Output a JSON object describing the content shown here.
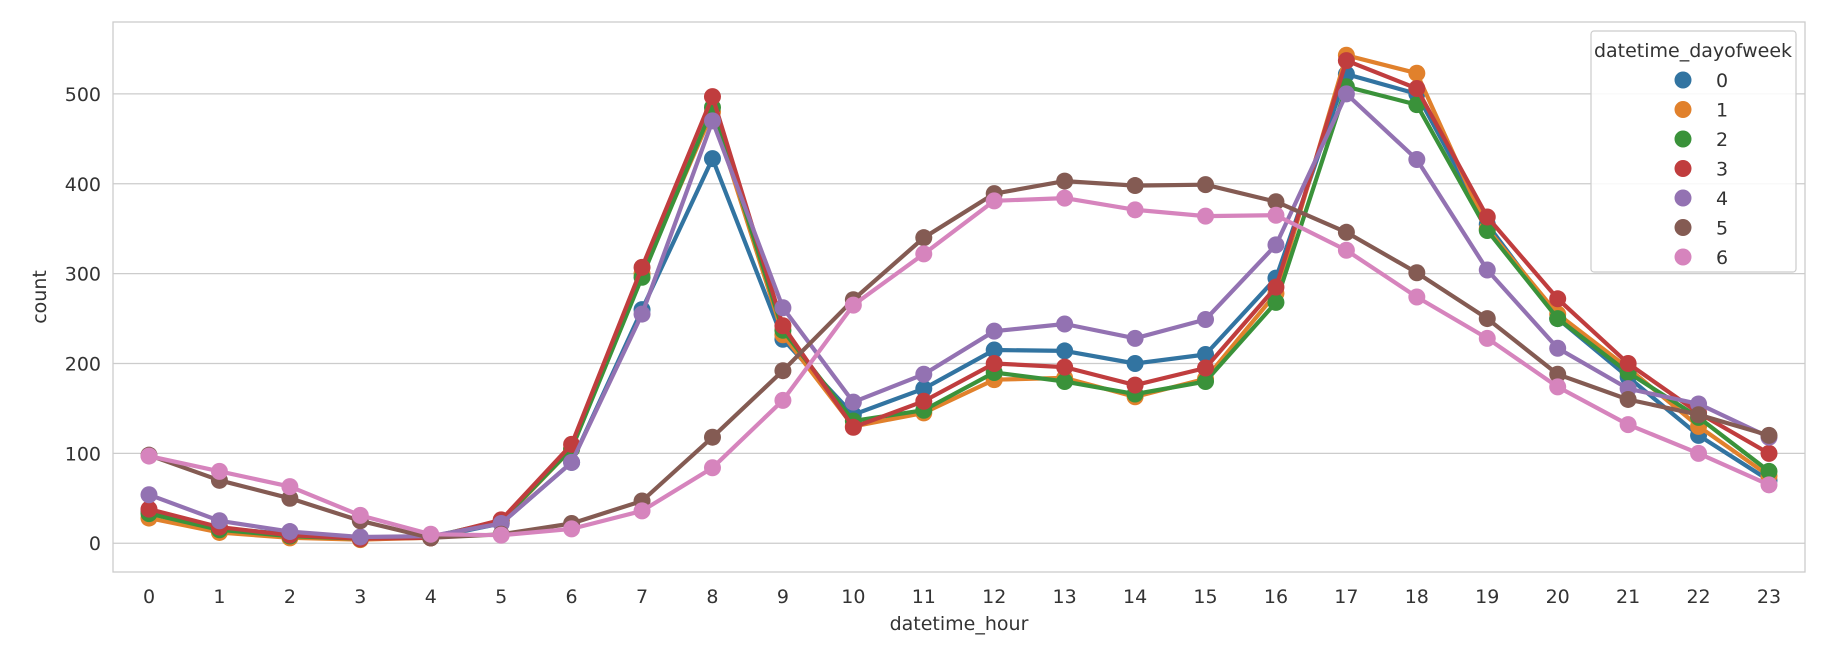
{
  "chart_data": {
    "type": "line",
    "xlabel": "datetime_hour",
    "ylabel": "count",
    "x": [
      0,
      1,
      2,
      3,
      4,
      5,
      6,
      7,
      8,
      9,
      10,
      11,
      12,
      13,
      14,
      15,
      16,
      17,
      18,
      19,
      20,
      21,
      22,
      23
    ],
    "ylim": [
      -32,
      580
    ],
    "yticks": [
      0,
      100,
      200,
      300,
      400,
      500
    ],
    "grid": true,
    "legend": {
      "title": "datetime_dayofweek",
      "placement": "top-right"
    },
    "series": [
      {
        "name": "0",
        "color": "#3274a1",
        "values": [
          35,
          17,
          10,
          5,
          6,
          22,
          90,
          260,
          428,
          227,
          143,
          172,
          215,
          214,
          200,
          210,
          295,
          522,
          500,
          355,
          250,
          185,
          120,
          70
        ]
      },
      {
        "name": "1",
        "color": "#e1812c",
        "values": [
          28,
          12,
          6,
          4,
          6,
          24,
          105,
          300,
          480,
          232,
          130,
          145,
          182,
          184,
          163,
          183,
          278,
          543,
          523,
          350,
          255,
          195,
          130,
          75
        ]
      },
      {
        "name": "2",
        "color": "#3a923a",
        "values": [
          33,
          15,
          8,
          5,
          7,
          25,
          105,
          296,
          485,
          237,
          136,
          148,
          190,
          180,
          166,
          180,
          268,
          508,
          488,
          348,
          250,
          190,
          140,
          80
        ]
      },
      {
        "name": "3",
        "color": "#c03d3e",
        "values": [
          38,
          18,
          9,
          5,
          6,
          26,
          110,
          307,
          497,
          242,
          129,
          158,
          200,
          196,
          176,
          195,
          285,
          537,
          506,
          363,
          272,
          200,
          145,
          100
        ]
      },
      {
        "name": "4",
        "color": "#9372b2",
        "values": [
          54,
          25,
          13,
          7,
          8,
          22,
          90,
          255,
          470,
          262,
          157,
          188,
          236,
          244,
          228,
          249,
          332,
          500,
          427,
          304,
          217,
          172,
          155,
          118
        ]
      },
      {
        "name": "5",
        "color": "#845b53",
        "values": [
          98,
          70,
          50,
          25,
          6,
          10,
          22,
          47,
          118,
          192,
          271,
          340,
          389,
          403,
          398,
          399,
          380,
          346,
          301,
          250,
          188,
          160,
          143,
          120
        ]
      },
      {
        "name": "6",
        "color": "#d684bd",
        "values": [
          97,
          80,
          63,
          31,
          10,
          9,
          16,
          36,
          84,
          159,
          265,
          322,
          381,
          384,
          371,
          364,
          365,
          326,
          274,
          228,
          174,
          132,
          100,
          65
        ]
      }
    ]
  }
}
